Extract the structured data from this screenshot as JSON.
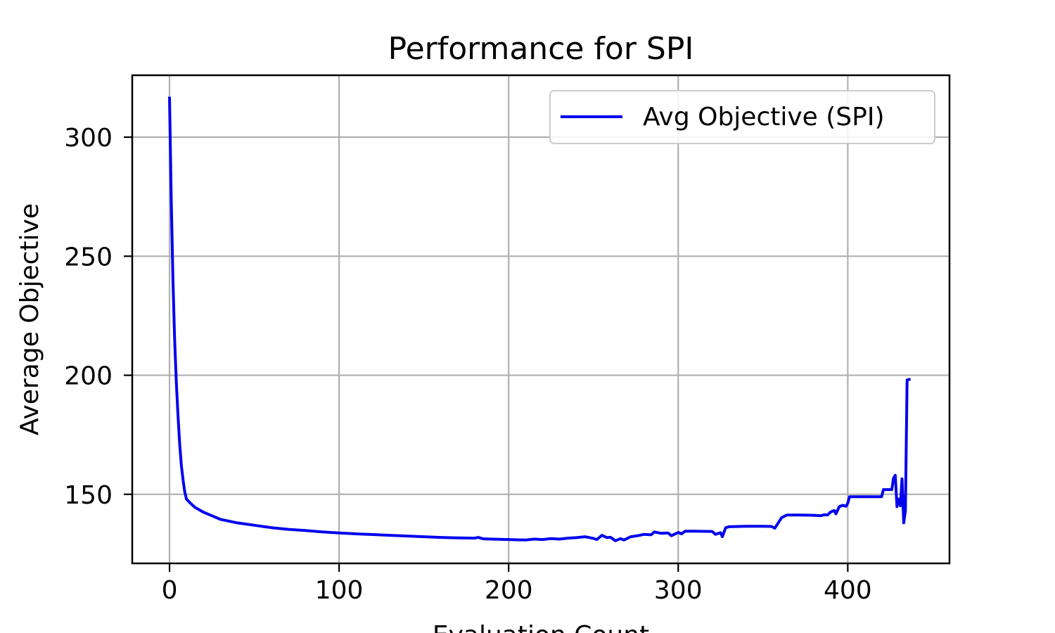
{
  "chart_data": {
    "type": "line",
    "title": "Performance for SPI",
    "xlabel": "Evaluation Count",
    "ylabel": "Average Objective",
    "xlim": [
      -22,
      460
    ],
    "ylim": [
      121,
      326
    ],
    "xticks": [
      0,
      100,
      200,
      300,
      400
    ],
    "yticks": [
      150,
      200,
      250,
      300
    ],
    "grid": true,
    "legend": "top-right",
    "colors": {
      "line": "#0000ee",
      "grid": "#b0b0b0",
      "axes": "#000000"
    },
    "series": [
      {
        "name": "Avg Objective (SPI)",
        "points": [
          [
            0,
            317
          ],
          [
            1,
            275
          ],
          [
            2,
            240
          ],
          [
            3,
            215
          ],
          [
            4,
            197
          ],
          [
            5,
            183
          ],
          [
            6,
            171
          ],
          [
            7,
            162
          ],
          [
            8,
            156
          ],
          [
            9,
            151
          ],
          [
            10,
            148
          ],
          [
            12,
            146.5
          ],
          [
            15,
            144.5
          ],
          [
            20,
            142.5
          ],
          [
            25,
            141
          ],
          [
            30,
            139.5
          ],
          [
            40,
            138
          ],
          [
            50,
            137
          ],
          [
            60,
            136
          ],
          [
            70,
            135.3
          ],
          [
            80,
            134.8
          ],
          [
            90,
            134.2
          ],
          [
            100,
            133.8
          ],
          [
            110,
            133.4
          ],
          [
            120,
            133.1
          ],
          [
            130,
            132.8
          ],
          [
            140,
            132.5
          ],
          [
            150,
            132.2
          ],
          [
            160,
            131.9
          ],
          [
            170,
            131.7
          ],
          [
            180,
            131.6
          ],
          [
            182,
            131.9
          ],
          [
            185,
            131.3
          ],
          [
            190,
            131.2
          ],
          [
            200,
            131.0
          ],
          [
            205,
            130.9
          ],
          [
            210,
            130.8
          ],
          [
            215,
            131.2
          ],
          [
            220,
            131.0
          ],
          [
            225,
            131.4
          ],
          [
            230,
            131.2
          ],
          [
            235,
            131.6
          ],
          [
            240,
            131.8
          ],
          [
            245,
            132.2
          ],
          [
            250,
            131.5
          ],
          [
            252,
            131.0
          ],
          [
            255,
            132.8
          ],
          [
            258,
            131.8
          ],
          [
            260,
            132.0
          ],
          [
            263,
            130.5
          ],
          [
            266,
            131.4
          ],
          [
            268,
            130.8
          ],
          [
            272,
            132.2
          ],
          [
            276,
            132.6
          ],
          [
            280,
            133.2
          ],
          [
            284,
            133.0
          ],
          [
            286,
            134.2
          ],
          [
            290,
            133.6
          ],
          [
            294,
            133.8
          ],
          [
            296,
            132.6
          ],
          [
            300,
            134.0
          ],
          [
            302,
            133.4
          ],
          [
            304,
            134.5
          ],
          [
            310,
            134.5
          ],
          [
            320,
            134.4
          ],
          [
            322,
            133.2
          ],
          [
            325,
            133.9
          ],
          [
            326,
            132.2
          ],
          [
            328,
            136.0
          ],
          [
            330,
            136.4
          ],
          [
            340,
            136.6
          ],
          [
            350,
            136.6
          ],
          [
            355,
            136.5
          ],
          [
            357,
            135.8
          ],
          [
            359,
            138.0
          ],
          [
            361,
            140.2
          ],
          [
            364,
            141.3
          ],
          [
            370,
            141.3
          ],
          [
            380,
            141.2
          ],
          [
            384,
            141.0
          ],
          [
            386,
            141.4
          ],
          [
            388,
            141.3
          ],
          [
            390,
            142.6
          ],
          [
            392,
            143.2
          ],
          [
            393,
            141.8
          ],
          [
            395,
            144.8
          ],
          [
            397,
            145.4
          ],
          [
            399,
            145.0
          ],
          [
            400,
            146.3
          ],
          [
            401,
            149.0
          ],
          [
            410,
            149.0
          ],
          [
            420,
            149.0
          ],
          [
            421,
            152.0
          ],
          [
            426,
            152.0
          ],
          [
            427,
            156.8
          ],
          [
            428,
            158.0
          ],
          [
            429,
            144.8
          ],
          [
            430,
            148.0
          ],
          [
            431,
            145.2
          ],
          [
            432,
            156.5
          ],
          [
            433,
            138.0
          ],
          [
            434,
            143.0
          ],
          [
            435,
            198.0
          ],
          [
            437,
            198.4
          ]
        ]
      }
    ]
  }
}
